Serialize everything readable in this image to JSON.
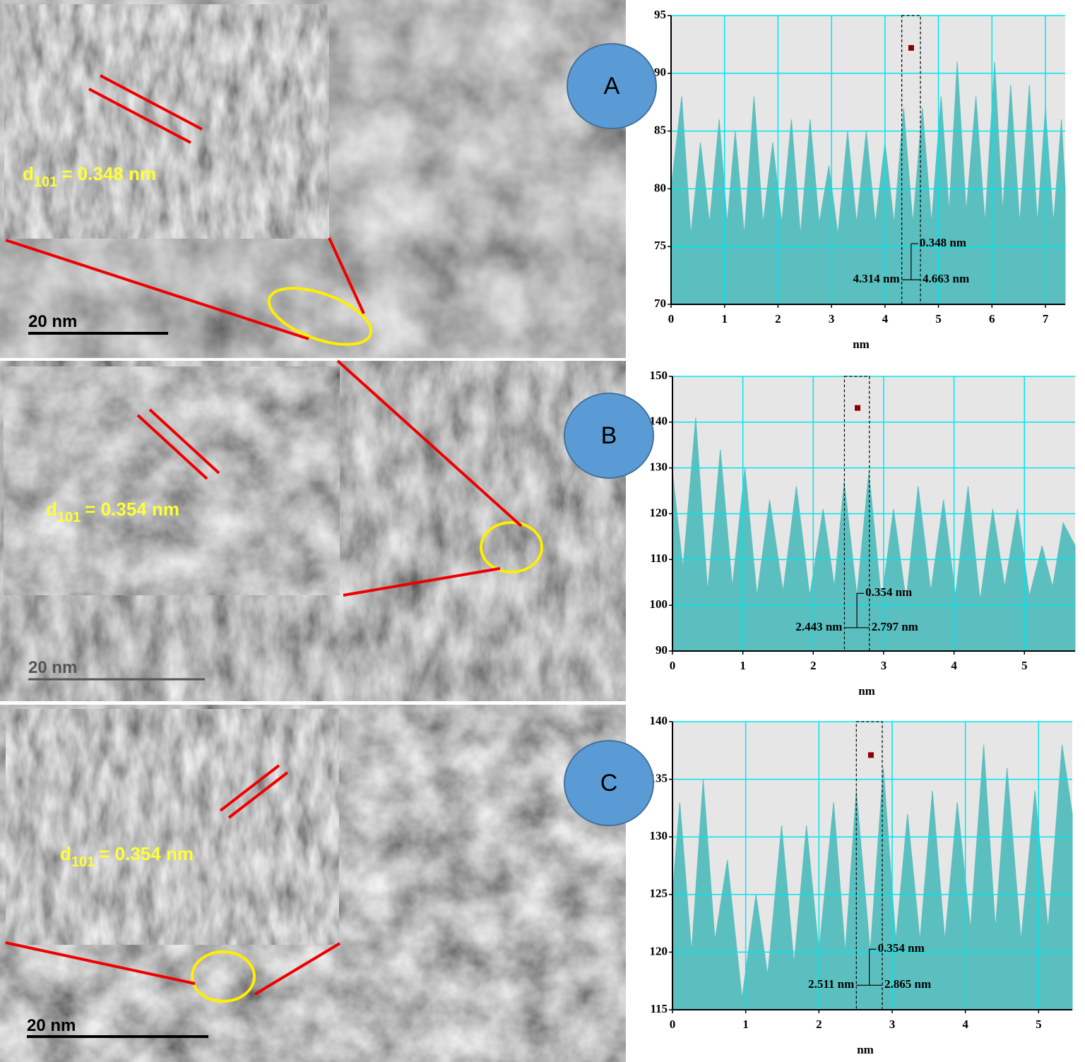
{
  "panels": [
    {
      "label": "A",
      "d": "d",
      "subscript": "101",
      "value": "= 0.348 nm",
      "scale_bar": "20 nm"
    },
    {
      "label": "B",
      "d": "d",
      "subscript": "101",
      "value": "= 0.354 nm",
      "scale_bar": "20 nm"
    },
    {
      "label": "C",
      "d": "d",
      "subscript": "101",
      "value": "= 0.354 nm",
      "scale_bar": "20 nm"
    }
  ],
  "chart_data": [
    {
      "type": "area",
      "x_label": "nm",
      "color": "#5bbfbf",
      "grid": true,
      "xlim": [
        0,
        7.37
      ],
      "ylim": [
        70,
        95
      ],
      "xticks": [
        0,
        1,
        2,
        3,
        4,
        5,
        6,
        7
      ],
      "yticks": [
        70,
        75,
        80,
        85,
        90,
        95
      ],
      "x": [
        0,
        0.2,
        0.37,
        0.55,
        0.72,
        0.9,
        1.05,
        1.2,
        1.37,
        1.55,
        1.72,
        1.9,
        2.07,
        2.25,
        2.42,
        2.6,
        2.77,
        2.95,
        3.12,
        3.3,
        3.47,
        3.65,
        3.82,
        4.0,
        4.17,
        4.35,
        4.52,
        4.7,
        4.87,
        5.05,
        5.2,
        5.35,
        5.52,
        5.7,
        5.87,
        6.05,
        6.2,
        6.35,
        6.52,
        6.7,
        6.85,
        7.0,
        7.15,
        7.3,
        7.37
      ],
      "values": [
        80,
        88,
        76,
        84,
        77,
        86,
        77,
        85,
        76,
        88,
        77,
        84,
        77,
        86,
        76,
        86,
        77,
        82,
        76,
        85,
        77,
        85,
        77,
        84,
        77,
        87,
        77,
        87,
        77,
        88,
        78,
        91,
        78,
        88,
        77,
        91,
        78,
        89,
        77,
        89,
        77,
        87,
        77,
        86,
        80
      ],
      "marker": {
        "x": 4.49,
        "y": 92.2
      },
      "region": {
        "x": [
          4.314,
          4.663
        ],
        "width_label": "0.348 nm",
        "start_label": "4.314 nm",
        "end_label": "4.663 nm"
      }
    },
    {
      "type": "area",
      "x_label": "nm",
      "color": "#5bbfbf",
      "grid": true,
      "xlim": [
        0,
        5.72
      ],
      "ylim": [
        90,
        150
      ],
      "xticks": [
        0,
        1,
        2,
        3,
        4,
        5
      ],
      "yticks": [
        90,
        100,
        110,
        120,
        130,
        140,
        150
      ],
      "x": [
        0,
        0.15,
        0.33,
        0.5,
        0.68,
        0.85,
        1.03,
        1.2,
        1.38,
        1.57,
        1.76,
        1.95,
        2.14,
        2.3,
        2.44,
        2.62,
        2.79,
        2.97,
        3.14,
        3.32,
        3.49,
        3.67,
        3.85,
        4.02,
        4.2,
        4.37,
        4.55,
        4.72,
        4.9,
        5.07,
        5.25,
        5.4,
        5.55,
        5.72
      ],
      "values": [
        129,
        108,
        141,
        103,
        134,
        104,
        130,
        102,
        123,
        103,
        126,
        102,
        121,
        104,
        127,
        102,
        129,
        101,
        121,
        101,
        126,
        103,
        123,
        102,
        126,
        101,
        121,
        104,
        121,
        102,
        113,
        104,
        118,
        113
      ],
      "marker": {
        "x": 2.63,
        "y": 143.1
      },
      "region": {
        "x": [
          2.443,
          2.797
        ],
        "width_label": "0.354 nm",
        "start_label": "2.443 nm",
        "end_label": "2.797 nm"
      }
    },
    {
      "type": "area",
      "x_label": "nm",
      "color": "#5bbfbf",
      "grid": true,
      "xlim": [
        0,
        5.46
      ],
      "ylim": [
        115,
        140
      ],
      "xticks": [
        0,
        1,
        2,
        3,
        4,
        5
      ],
      "yticks": [
        115,
        120,
        125,
        130,
        135,
        140
      ],
      "x": [
        0,
        0.1,
        0.26,
        0.42,
        0.58,
        0.75,
        0.95,
        1.14,
        1.3,
        1.49,
        1.66,
        1.83,
        2.0,
        2.2,
        2.36,
        2.51,
        2.7,
        2.88,
        3.05,
        3.21,
        3.38,
        3.55,
        3.72,
        3.89,
        4.07,
        4.25,
        4.41,
        4.57,
        4.76,
        4.95,
        5.13,
        5.32,
        5.46
      ],
      "values": [
        125,
        133,
        120,
        135,
        121,
        128,
        116,
        125,
        118,
        131,
        119,
        131,
        120,
        133,
        120,
        134,
        120,
        136,
        121,
        132,
        121,
        134,
        121,
        133,
        122,
        138,
        122,
        136,
        121,
        134,
        122,
        138,
        132
      ],
      "marker": {
        "x": 2.71,
        "y": 137.1
      },
      "region": {
        "x": [
          2.511,
          2.865
        ],
        "width_label": "0.354 nm",
        "start_label": "2.511 nm",
        "end_label": "2.865 nm"
      }
    }
  ]
}
